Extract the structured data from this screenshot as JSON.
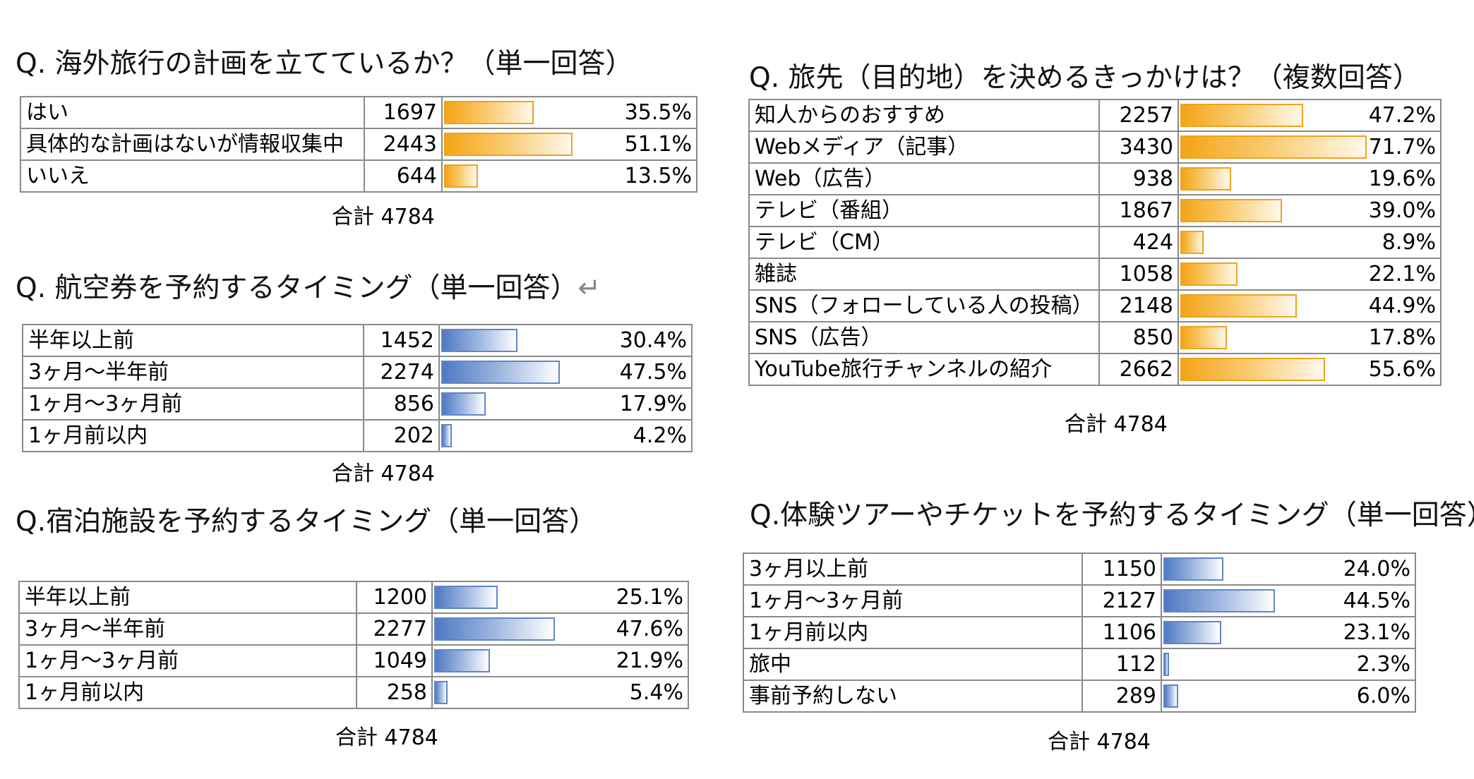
{
  "chart_data": [
    {
      "type": "table",
      "title": "Q. 海外旅行の計画を立てているか？（単一回答）",
      "color": "orange",
      "rows": [
        {
          "label": "はい",
          "count": 1697,
          "percent": 35.5,
          "pct_label": "35.5%"
        },
        {
          "label": "具体的な計画はないが情報収集中",
          "count": 2443,
          "percent": 51.1,
          "pct_label": "51.1%"
        },
        {
          "label": "いいえ",
          "count": 644,
          "percent": 13.5,
          "pct_label": "13.5%"
        }
      ],
      "total": "合計 4784"
    },
    {
      "type": "table",
      "title": "Q. 航空券を予約するタイミング（単一回答）",
      "title_mark": "↵",
      "color": "blue",
      "rows": [
        {
          "label": "半年以上前",
          "count": 1452,
          "percent": 30.4,
          "pct_label": "30.4%"
        },
        {
          "label": "3ヶ月～半年前",
          "count": 2274,
          "percent": 47.5,
          "pct_label": "47.5%"
        },
        {
          "label": "1ヶ月～3ヶ月前",
          "count": 856,
          "percent": 17.9,
          "pct_label": "17.9%"
        },
        {
          "label": "1ヶ月前以内",
          "count": 202,
          "percent": 4.2,
          "pct_label": "4.2%"
        }
      ],
      "total": "合計 4784"
    },
    {
      "type": "table",
      "title": "Q.宿泊施設を予約するタイミング（単一回答）",
      "color": "blue",
      "rows": [
        {
          "label": "半年以上前",
          "count": 1200,
          "percent": 25.1,
          "pct_label": "25.1%"
        },
        {
          "label": "3ヶ月～半年前",
          "count": 2277,
          "percent": 47.6,
          "pct_label": "47.6%"
        },
        {
          "label": "1ヶ月～3ヶ月前",
          "count": 1049,
          "percent": 21.9,
          "pct_label": "21.9%"
        },
        {
          "label": "1ヶ月前以内",
          "count": 258,
          "percent": 5.4,
          "pct_label": "5.4%"
        }
      ],
      "total": "合計 4784"
    },
    {
      "type": "table",
      "title": "Q.  旅先（目的地）を決めるきっかけは？（複数回答）",
      "color": "orange",
      "rows": [
        {
          "label": "知人からのおすすめ",
          "count": 2257,
          "percent": 47.2,
          "pct_label": "47.2%"
        },
        {
          "label": "Webメディア（記事）",
          "count": 3430,
          "percent": 71.7,
          "pct_label": "71.7%"
        },
        {
          "label": "Web（広告）",
          "count": 938,
          "percent": 19.6,
          "pct_label": "19.6%"
        },
        {
          "label": "テレビ（番組）",
          "count": 1867,
          "percent": 39.0,
          "pct_label": "39.0%"
        },
        {
          "label": "テレビ（CM）",
          "count": 424,
          "percent": 8.9,
          "pct_label": "8.9%"
        },
        {
          "label": "雑誌",
          "count": 1058,
          "percent": 22.1,
          "pct_label": "22.1%"
        },
        {
          "label": "SNS（フォローしている人の投稿）",
          "count": 2148,
          "percent": 44.9,
          "pct_label": "44.9%"
        },
        {
          "label": "SNS（広告）",
          "count": 850,
          "percent": 17.8,
          "pct_label": "17.8%"
        },
        {
          "label": "YouTube旅行チャンネルの紹介",
          "count": 2662,
          "percent": 55.6,
          "pct_label": "55.6%"
        }
      ],
      "total": "合計 4784"
    },
    {
      "type": "table",
      "title": "Q.体験ツアーやチケットを予約するタイミング（単一回答）",
      "color": "blue",
      "rows": [
        {
          "label": "3ヶ月以上前",
          "count": 1150,
          "percent": 24.0,
          "pct_label": "24.0%"
        },
        {
          "label": "1ヶ月～3ヶ月前",
          "count": 2127,
          "percent": 44.5,
          "pct_label": "44.5%"
        },
        {
          "label": "1ヶ月前以内",
          "count": 1106,
          "percent": 23.1,
          "pct_label": "23.1%"
        },
        {
          "label": "旅中",
          "count": 112,
          "percent": 2.3,
          "pct_label": "2.3%"
        },
        {
          "label": "事前予約しない",
          "count": 289,
          "percent": 6.0,
          "pct_label": "6.0%"
        }
      ],
      "total": "合計 4784"
    }
  ]
}
